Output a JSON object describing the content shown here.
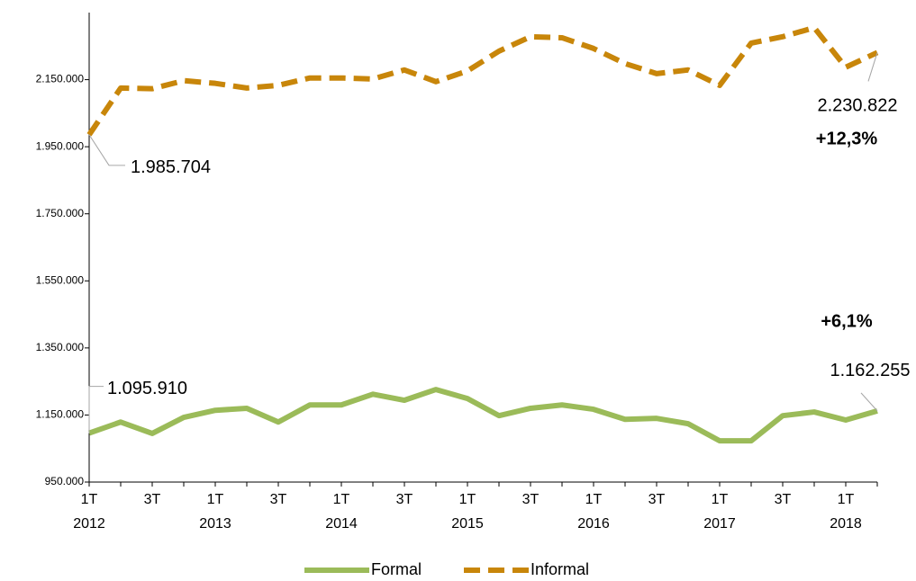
{
  "chart_data": {
    "type": "line",
    "categories": [
      "1T",
      null,
      "3T",
      null,
      "1T",
      null,
      "3T",
      null,
      "1T",
      null,
      "3T",
      null,
      "1T",
      null,
      "3T",
      null,
      "1T",
      null,
      "3T",
      null,
      "1T",
      null,
      "3T",
      null,
      "1T",
      null
    ],
    "year_labels": [
      "2012",
      null,
      null,
      null,
      "2013",
      null,
      null,
      null,
      "2014",
      null,
      null,
      null,
      "2015",
      null,
      null,
      null,
      "2016",
      null,
      null,
      null,
      "2017",
      null,
      null,
      null,
      "2018",
      null
    ],
    "series": [
      {
        "name": "Formal",
        "color": "#9bbb59",
        "dash": false,
        "values": [
          1095910,
          1129000,
          1095000,
          1143000,
          1164000,
          1170000,
          1129000,
          1180000,
          1180000,
          1212000,
          1194000,
          1226000,
          1199000,
          1148000,
          1170000,
          1180000,
          1167000,
          1137000,
          1140000,
          1124000,
          1073000,
          1073000,
          1148000,
          1159000,
          1135000,
          1162255
        ],
        "value_labels": [
          "1.095.910",
          null,
          null,
          null,
          null,
          null,
          null,
          null,
          null,
          null,
          null,
          null,
          null,
          null,
          null,
          null,
          null,
          null,
          null,
          null,
          null,
          null,
          null,
          null,
          null,
          "1.162.255"
        ]
      },
      {
        "name": "Informal",
        "color": "#c8860a",
        "dash": true,
        "values": [
          1985704,
          2125000,
          2123000,
          2147000,
          2139000,
          2125000,
          2133000,
          2155000,
          2155000,
          2152000,
          2179000,
          2144000,
          2176000,
          2235000,
          2278000,
          2275000,
          2243000,
          2198000,
          2168000,
          2179000,
          2133000,
          2259000,
          2278000,
          2305000,
          2187000,
          2230822
        ],
        "value_labels": [
          "1.985.704",
          null,
          null,
          null,
          null,
          null,
          null,
          null,
          null,
          null,
          null,
          null,
          null,
          null,
          null,
          null,
          null,
          null,
          null,
          null,
          null,
          null,
          null,
          null,
          null,
          "2.230.822"
        ]
      }
    ],
    "annotations": [
      "+12,3%",
      "+6,1%"
    ],
    "ylim": [
      950000,
      2350000
    ],
    "yticks": [
      {
        "value": 950000,
        "label": "950.000"
      },
      {
        "value": 1150000,
        "label": "1.150.000"
      },
      {
        "value": 1350000,
        "label": "1.350.000"
      },
      {
        "value": 1550000,
        "label": "1.550.000"
      },
      {
        "value": 1750000,
        "label": "1.750.000"
      },
      {
        "value": 1950000,
        "label": "1.950.000"
      },
      {
        "value": 2150000,
        "label": "2.150.000"
      }
    ],
    "grid": false,
    "legend": "bottom"
  }
}
